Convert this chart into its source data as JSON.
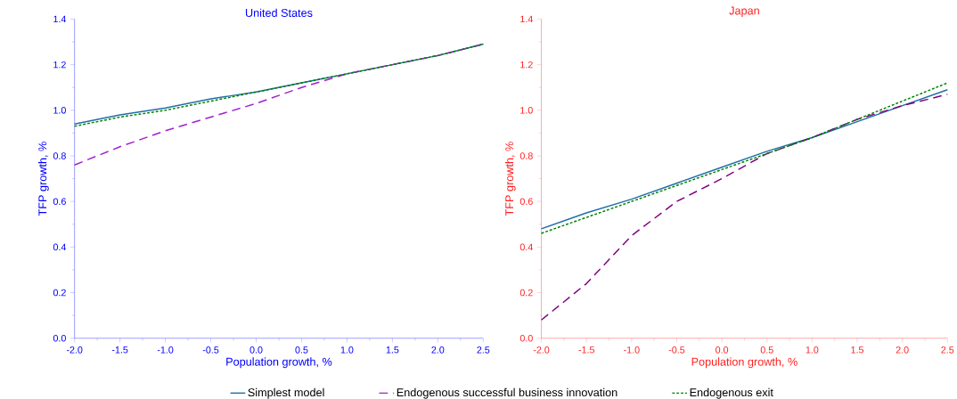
{
  "chart_data": [
    {
      "type": "line",
      "title": "United States",
      "xlabel": "Population growth, %",
      "ylabel": "TFP growth, %",
      "legend": "bottom",
      "xlim": [
        -2.0,
        2.5
      ],
      "ylim": [
        0.0,
        1.4
      ],
      "xticks": [
        {
          "value": -2.0,
          "label": "-2.0"
        },
        {
          "value": -1.5,
          "label": "-1.5"
        },
        {
          "value": -1.0,
          "label": "-1.0"
        },
        {
          "value": -0.5,
          "label": "-0.5"
        },
        {
          "value": 0.0,
          "label": "0.0"
        },
        {
          "value": 0.5,
          "label": "0.5"
        },
        {
          "value": 1.0,
          "label": "1.0"
        },
        {
          "value": 1.5,
          "label": "1.5"
        },
        {
          "value": 2.0,
          "label": "2.0"
        },
        {
          "value": 2.5,
          "label": "2.5"
        }
      ],
      "yticks": [
        {
          "value": 0.0,
          "label": "0.0"
        },
        {
          "value": 0.2,
          "label": "0.2"
        },
        {
          "value": 0.4,
          "label": "0.4"
        },
        {
          "value": 0.6,
          "label": "0.6"
        },
        {
          "value": 0.8,
          "label": "0.8"
        },
        {
          "value": 1.0,
          "label": "1.0"
        },
        {
          "value": 1.2,
          "label": "1.2"
        },
        {
          "value": 1.4,
          "label": "1.4"
        }
      ],
      "x": [
        -2.0,
        -1.5,
        -1.0,
        -0.5,
        0.0,
        0.5,
        1.0,
        1.5,
        2.0,
        2.5
      ],
      "series": [
        {
          "name": "Simplest model",
          "color": "#1f6fa8",
          "line_style": "solid",
          "values": [
            0.94,
            0.98,
            1.01,
            1.05,
            1.08,
            1.12,
            1.16,
            1.2,
            1.24,
            1.29
          ]
        },
        {
          "name": "Endogenous successful business innovation",
          "color": "#a020d0",
          "line_style": "dashed",
          "values": [
            0.76,
            0.84,
            0.91,
            0.97,
            1.03,
            1.1,
            1.16,
            1.2,
            1.24,
            1.29
          ]
        },
        {
          "name": "Endogenous exit",
          "color": "#008000",
          "line_style": "dotted",
          "values": [
            0.93,
            0.97,
            1.0,
            1.04,
            1.08,
            1.12,
            1.16,
            1.2,
            1.24,
            1.29
          ]
        }
      ]
    },
    {
      "type": "line",
      "title": "Japan",
      "xlabel": "Population growth, %",
      "ylabel": "TFP growth, %",
      "xlim": [
        -2.0,
        2.5
      ],
      "ylim": [
        0.0,
        1.4
      ],
      "xticks": [
        {
          "value": -2.0,
          "label": "-2.0"
        },
        {
          "value": -1.5,
          "label": "-1.5"
        },
        {
          "value": -1.0,
          "label": "-1.0"
        },
        {
          "value": -0.5,
          "label": "-0.5"
        },
        {
          "value": 0.0,
          "label": "0.0"
        },
        {
          "value": 0.5,
          "label": "0.5"
        },
        {
          "value": 1.0,
          "label": "1.0"
        },
        {
          "value": 1.5,
          "label": "1.5"
        },
        {
          "value": 2.0,
          "label": "2.0"
        },
        {
          "value": 2.5,
          "label": "2.5"
        }
      ],
      "yticks": [
        {
          "value": 0.0,
          "label": "0.0"
        },
        {
          "value": 0.2,
          "label": "0.2"
        },
        {
          "value": 0.4,
          "label": "0.4"
        },
        {
          "value": 0.6,
          "label": "0.6"
        },
        {
          "value": 0.8,
          "label": "0.8"
        },
        {
          "value": 1.0,
          "label": "1.0"
        },
        {
          "value": 1.2,
          "label": "1.2"
        },
        {
          "value": 1.4,
          "label": "1.4"
        }
      ],
      "x": [
        -2.0,
        -1.5,
        -1.0,
        -0.5,
        0.0,
        0.5,
        1.0,
        1.5,
        2.0,
        2.5
      ],
      "series": [
        {
          "color": "#1f6fa8",
          "line_style": "solid",
          "values": [
            0.48,
            0.55,
            0.61,
            0.68,
            0.75,
            0.82,
            0.88,
            0.95,
            1.02,
            1.09
          ]
        },
        {
          "color": "#800080",
          "line_style": "dashed",
          "values": [
            0.08,
            0.24,
            0.45,
            0.6,
            0.7,
            0.81,
            0.88,
            0.96,
            1.02,
            1.07
          ]
        },
        {
          "color": "#008000",
          "line_style": "dotted",
          "values": [
            0.46,
            0.53,
            0.6,
            0.67,
            0.74,
            0.81,
            0.88,
            0.96,
            1.04,
            1.12
          ]
        }
      ]
    }
  ]
}
